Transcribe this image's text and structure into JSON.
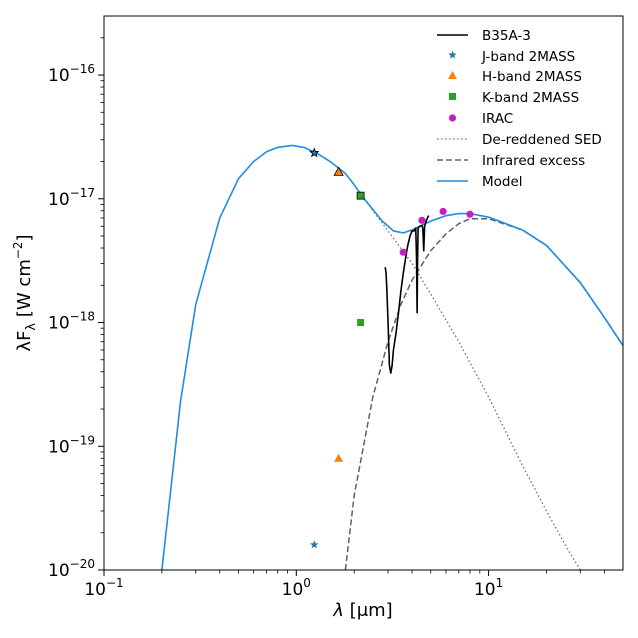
{
  "chart_data": {
    "type": "line",
    "xscale": "log",
    "yscale": "log",
    "xlim": [
      0.1,
      50
    ],
    "ylim": [
      1e-20,
      3e-16
    ],
    "xlabel_symbol": "λ",
    "xlabel_unit": "[μm]",
    "ylabel_main": "λF",
    "ylabel_sub": "λ",
    "ylabel_unit_prefix": "[W cm",
    "ylabel_unit_exp": "−2",
    "ylabel_unit_suffix": "]",
    "x_ticks": [
      {
        "value": 0.1,
        "base": "10",
        "exp": "−1"
      },
      {
        "value": 1,
        "base": "10",
        "exp": "0"
      },
      {
        "value": 10,
        "base": "10",
        "exp": "1"
      }
    ],
    "y_ticks": [
      {
        "value": 1e-20,
        "base": "10",
        "exp": "−20"
      },
      {
        "value": 1e-19,
        "base": "10",
        "exp": "−19"
      },
      {
        "value": 1e-18,
        "base": "10",
        "exp": "−18"
      },
      {
        "value": 1e-17,
        "base": "10",
        "exp": "−17"
      },
      {
        "value": 1e-16,
        "base": "10",
        "exp": "−16"
      }
    ],
    "legend_position": "top-right",
    "colors": {
      "model": "#1f8ce6",
      "spectrum": "#000000",
      "j_band": "#1f77b4",
      "h_band": "#ff7f0e",
      "k_band": "#2ca02c",
      "irac": "#c41fc4",
      "dereddened": "#707070",
      "excess": "#606060"
    },
    "series": [
      {
        "name": "B35A-3",
        "style": "line",
        "points": [
          [
            2.9,
            2.8e-18
          ],
          [
            2.93,
            2.5e-18
          ],
          [
            2.96,
            1.8e-18
          ],
          [
            3.0,
            1e-18
          ],
          [
            3.05,
            4.5e-19
          ],
          [
            3.1,
            3.9e-19
          ],
          [
            3.15,
            4.5e-19
          ],
          [
            3.2,
            6e-19
          ],
          [
            3.3,
            8.2e-19
          ],
          [
            3.4,
            1.2e-18
          ],
          [
            3.5,
            1.8e-18
          ],
          [
            3.6,
            2.5e-18
          ],
          [
            3.7,
            3.3e-18
          ],
          [
            3.8,
            4.2e-18
          ],
          [
            3.9,
            5e-18
          ],
          [
            4.0,
            5.5e-18
          ],
          [
            4.1,
            5.5e-18
          ],
          [
            4.18,
            5.8e-18
          ],
          [
            4.22,
            3.3e-18
          ],
          [
            4.25,
            1.2e-18
          ],
          [
            4.27,
            3e-18
          ],
          [
            4.3,
            5.8e-18
          ],
          [
            4.4,
            6e-18
          ],
          [
            4.5,
            6.1e-18
          ],
          [
            4.55,
            5.8e-18
          ],
          [
            4.6,
            3.8e-18
          ],
          [
            4.65,
            6e-18
          ],
          [
            4.75,
            6.7e-18
          ],
          [
            4.85,
            7.2e-18
          ],
          [
            4.9,
            7.3e-18
          ]
        ]
      },
      {
        "name": "J-band 2MASS",
        "style": "star",
        "points": [
          [
            1.24,
            1.6e-20
          ],
          [
            1.24,
            2.35e-17
          ]
        ]
      },
      {
        "name": "H-band 2MASS",
        "style": "triangle",
        "points": [
          [
            1.66,
            8e-20
          ],
          [
            1.66,
            1.65e-17
          ]
        ]
      },
      {
        "name": "K-band 2MASS",
        "style": "square",
        "points": [
          [
            2.16,
            1e-18
          ],
          [
            2.16,
            1.06e-17
          ]
        ]
      },
      {
        "name": "IRAC",
        "style": "circle",
        "points": [
          [
            3.6,
            3.7e-18
          ],
          [
            4.5,
            6.7e-18
          ],
          [
            5.8,
            7.9e-18
          ],
          [
            8.0,
            7.5e-18
          ]
        ]
      },
      {
        "name": "De-reddened SED",
        "style": "dotted",
        "points": [
          [
            2.2,
            1.05e-17
          ],
          [
            3.0,
            5.5e-18
          ],
          [
            4.0,
            3e-18
          ],
          [
            5.0,
            1.7e-18
          ],
          [
            7.0,
            7e-19
          ],
          [
            10.0,
            2.5e-19
          ],
          [
            15.0,
            7e-20
          ],
          [
            20.0,
            3e-20
          ],
          [
            25.0,
            1.6e-20
          ],
          [
            30.0,
            1e-20
          ]
        ]
      },
      {
        "name": "Infrared excess",
        "style": "dashed",
        "points": [
          [
            1.8,
            1e-20
          ],
          [
            2.0,
            4e-20
          ],
          [
            2.5,
            2.5e-19
          ],
          [
            3.0,
            7e-19
          ],
          [
            3.5,
            1.4e-18
          ],
          [
            4.0,
            2.2e-18
          ],
          [
            5.0,
            3.8e-18
          ],
          [
            6.0,
            5.2e-18
          ],
          [
            7.0,
            6.3e-18
          ],
          [
            8.0,
            6.9e-18
          ],
          [
            10.0,
            6.9e-18
          ],
          [
            15.0,
            5.6e-18
          ],
          [
            20.0,
            4.2e-18
          ],
          [
            30.0,
            2.1e-18
          ],
          [
            40.0,
            1.1e-18
          ],
          [
            50.0,
            6.5e-19
          ]
        ]
      },
      {
        "name": "Model",
        "style": "line",
        "points": [
          [
            0.2,
            1e-20
          ],
          [
            0.25,
            2.3e-19
          ],
          [
            0.3,
            1.4e-18
          ],
          [
            0.4,
            7e-18
          ],
          [
            0.5,
            1.45e-17
          ],
          [
            0.6,
            2e-17
          ],
          [
            0.7,
            2.4e-17
          ],
          [
            0.8,
            2.6e-17
          ],
          [
            0.95,
            2.7e-17
          ],
          [
            1.1,
            2.6e-17
          ],
          [
            1.3,
            2.3e-17
          ],
          [
            1.5,
            2e-17
          ],
          [
            1.8,
            1.6e-17
          ],
          [
            2.0,
            1.3e-17
          ],
          [
            2.2,
            1.05e-17
          ],
          [
            2.5,
            8.2e-18
          ],
          [
            2.8,
            6.6e-18
          ],
          [
            3.2,
            5.5e-18
          ],
          [
            3.6,
            5.3e-18
          ],
          [
            4.0,
            5.6e-18
          ],
          [
            5.0,
            6.6e-18
          ],
          [
            6.0,
            7.3e-18
          ],
          [
            7.0,
            7.6e-18
          ],
          [
            8.0,
            7.6e-18
          ],
          [
            10.0,
            7.1e-18
          ],
          [
            15.0,
            5.6e-18
          ],
          [
            20.0,
            4.2e-18
          ],
          [
            30.0,
            2.1e-18
          ],
          [
            40.0,
            1.1e-18
          ],
          [
            50.0,
            6.5e-19
          ]
        ]
      }
    ]
  }
}
